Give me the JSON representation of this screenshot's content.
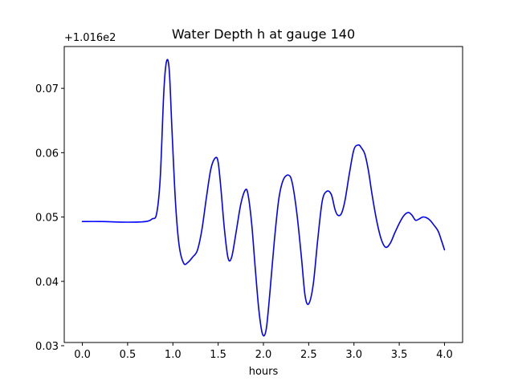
{
  "chart_data": {
    "type": "line",
    "title": "Water Depth h at gauge 140",
    "xlabel": "hours",
    "ylabel": "",
    "y_offset_label": "+1.016e2",
    "y_offset": 101.6,
    "xlim": [
      -0.2,
      4.2
    ],
    "ylim": [
      0.0305,
      0.0765
    ],
    "x_ticks": [
      0.0,
      0.5,
      1.0,
      1.5,
      2.0,
      2.5,
      3.0,
      3.5,
      4.0
    ],
    "x_tick_labels": [
      "0.0",
      "0.5",
      "1.0",
      "1.5",
      "2.0",
      "2.5",
      "3.0",
      "3.5",
      "4.0"
    ],
    "y_ticks": [
      0.03,
      0.04,
      0.05,
      0.06,
      0.07
    ],
    "y_tick_labels": [
      "0.03",
      "0.04",
      "0.05",
      "0.06",
      "0.07"
    ],
    "grid": false,
    "series": [
      {
        "color": "#0000ff",
        "x": [
          0.0,
          0.2,
          0.5,
          0.7,
          0.77,
          0.82,
          0.86,
          0.9,
          0.93,
          0.96,
          0.99,
          1.03,
          1.07,
          1.12,
          1.17,
          1.22,
          1.27,
          1.32,
          1.37,
          1.42,
          1.47,
          1.5,
          1.53,
          1.57,
          1.61,
          1.65,
          1.7,
          1.75,
          1.8,
          1.83,
          1.87,
          1.91,
          1.95,
          1.99,
          2.03,
          2.07,
          2.12,
          2.17,
          2.22,
          2.28,
          2.32,
          2.37,
          2.42,
          2.46,
          2.5,
          2.55,
          2.6,
          2.65,
          2.7,
          2.75,
          2.79,
          2.82,
          2.86,
          2.9,
          2.95,
          3.0,
          3.05,
          3.08,
          3.12,
          3.16,
          3.2,
          3.25,
          3.3,
          3.35,
          3.4,
          3.45,
          3.5,
          3.55,
          3.6,
          3.64,
          3.68,
          3.72,
          3.76,
          3.8,
          3.84,
          3.88,
          3.93,
          3.97,
          4.0
        ],
        "y": [
          0.0493,
          0.0493,
          0.0492,
          0.0493,
          0.0497,
          0.0505,
          0.056,
          0.0695,
          0.0742,
          0.0728,
          0.0635,
          0.052,
          0.0455,
          0.0428,
          0.043,
          0.0438,
          0.0448,
          0.048,
          0.053,
          0.0575,
          0.0592,
          0.0585,
          0.0545,
          0.048,
          0.0436,
          0.0438,
          0.0478,
          0.052,
          0.0542,
          0.0535,
          0.049,
          0.042,
          0.0355,
          0.0318,
          0.0325,
          0.038,
          0.0462,
          0.0528,
          0.0558,
          0.0565,
          0.0552,
          0.0505,
          0.0437,
          0.0378,
          0.0365,
          0.0395,
          0.0465,
          0.0525,
          0.054,
          0.0535,
          0.0512,
          0.0503,
          0.0505,
          0.0525,
          0.0568,
          0.0605,
          0.0612,
          0.0608,
          0.0598,
          0.0572,
          0.0535,
          0.0495,
          0.0466,
          0.0453,
          0.0459,
          0.0475,
          0.049,
          0.0502,
          0.0507,
          0.0503,
          0.0495,
          0.0497,
          0.05,
          0.0499,
          0.0495,
          0.0488,
          0.0478,
          0.0462,
          0.0449
        ]
      }
    ]
  }
}
